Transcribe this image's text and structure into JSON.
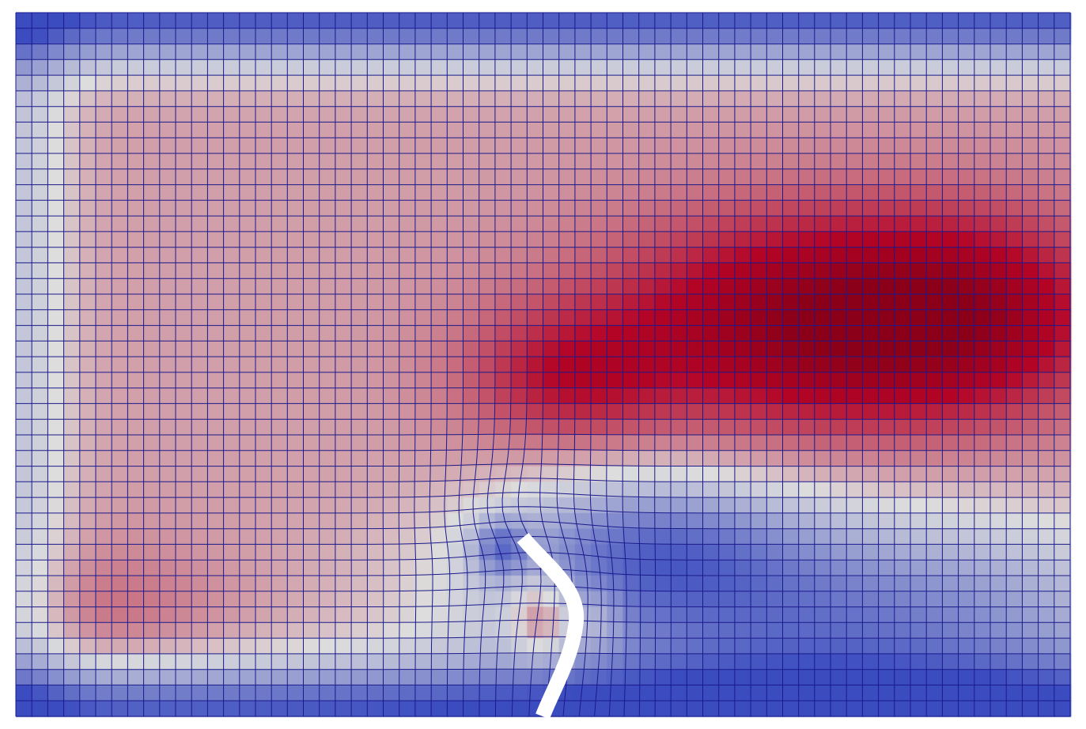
{
  "scene": {
    "kind": "fluid-structure mesh visualization",
    "colormap": {
      "name": "cool-to-warm",
      "low": "#3b4cc0",
      "mid": "#dddddd",
      "high": "#b40426",
      "peak": "#8b0018"
    },
    "background": "#ffffff",
    "mesh_line_color": "#1a1a8c",
    "flap_color": "#ffffff"
  }
}
